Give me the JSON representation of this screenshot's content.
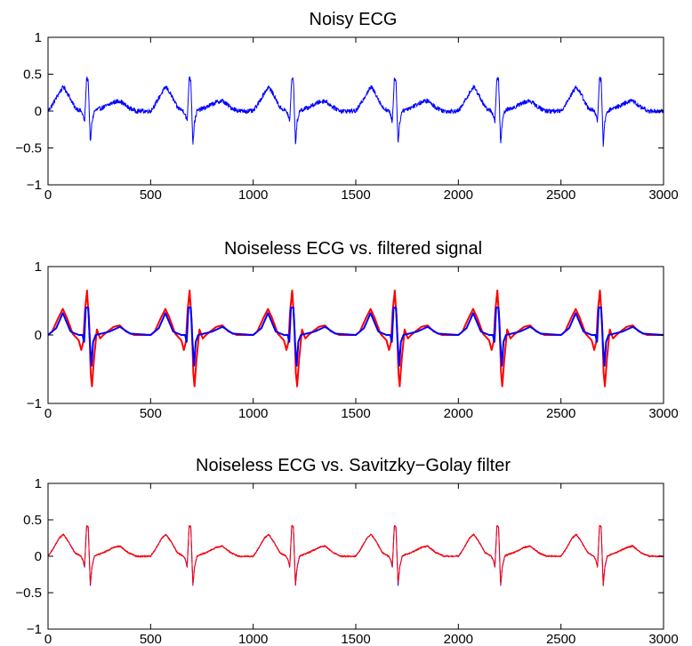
{
  "chart_data": [
    {
      "type": "line",
      "title": "Noisy ECG",
      "xlabel": "",
      "ylabel": "",
      "xlim": [
        0,
        3000
      ],
      "ylim": [
        -1,
        1
      ],
      "xticks": [
        0,
        500,
        1000,
        1500,
        2000,
        2500,
        3000
      ],
      "yticks": [
        -1,
        -0.5,
        0,
        0.5,
        1
      ],
      "xtick_labels": [
        "0",
        "500",
        "1000",
        "1500",
        "2000",
        "2500",
        "3000"
      ],
      "ytick_labels": [
        "−1",
        "−0.5",
        "0",
        "0.5",
        "1"
      ],
      "grid": false,
      "beat_period": 500,
      "beat_starts": [
        0,
        500,
        1000,
        1500,
        2000,
        2500
      ],
      "series": [
        {
          "color": "#0000ff",
          "noise_amplitude": 0.03,
          "beat_shape": {
            "x": [
              0,
              20,
              55,
              75,
              100,
              130,
              160,
              170,
              178,
              188,
              196,
              206,
              214,
              226,
              240,
              270,
              320,
              350,
              390,
              430,
              500
            ],
            "y": [
              0,
              0.08,
              0.25,
              0.33,
              0.22,
              0.05,
              0.0,
              -0.05,
              -0.15,
              0.45,
              0.42,
              -0.45,
              -0.15,
              0.0,
              0.02,
              0.05,
              0.12,
              0.14,
              0.05,
              0.0,
              0.0
            ]
          }
        }
      ]
    },
    {
      "type": "line",
      "title": "Noiseless ECG  vs. filtered signal",
      "xlabel": "",
      "ylabel": "",
      "xlim": [
        0,
        3000
      ],
      "ylim": [
        -1,
        1
      ],
      "xticks": [
        0,
        500,
        1000,
        1500,
        2000,
        2500,
        3000
      ],
      "yticks": [
        -1,
        0,
        1
      ],
      "xtick_labels": [
        "0",
        "500",
        "1000",
        "1500",
        "2000",
        "2500",
        "3000"
      ],
      "ytick_labels": [
        "−1",
        "0",
        "1"
      ],
      "grid": false,
      "beat_period": 500,
      "beat_starts": [
        0,
        500,
        1000,
        1500,
        2000,
        2500
      ],
      "series": [
        {
          "color": "#ff0000",
          "noise_amplitude": 0,
          "beat_shape": {
            "x": [
              0,
              20,
              50,
              72,
              92,
              120,
              150,
              162,
              172,
              180,
              190,
              200,
              208,
              214,
              224,
              238,
              254,
              270,
              290,
              320,
              350,
              380,
              420,
              500
            ],
            "y": [
              0,
              0.05,
              0.25,
              0.38,
              0.25,
              0.02,
              -0.08,
              -0.22,
              -0.1,
              0.35,
              0.65,
              0.2,
              -0.55,
              -0.75,
              -0.35,
              0.08,
              -0.05,
              0.0,
              0.05,
              0.12,
              0.14,
              0.05,
              0.0,
              0.0
            ]
          }
        },
        {
          "color": "#0000ff",
          "noise_amplitude": 0,
          "beat_shape": {
            "x": [
              0,
              40,
              72,
              110,
              150,
              168,
              176,
              184,
              196,
              204,
              212,
              220,
              232,
              300,
              350,
              400,
              500
            ],
            "y": [
              0,
              0.1,
              0.32,
              0.05,
              0.0,
              0.0,
              -0.1,
              0.4,
              0.4,
              -0.1,
              -0.45,
              -0.1,
              0.0,
              0.05,
              0.12,
              0.02,
              0.0
            ]
          }
        }
      ]
    },
    {
      "type": "line",
      "title": "Noiseless ECG  vs. Savitzky−Golay filter",
      "xlabel": "",
      "ylabel": "",
      "xlim": [
        0,
        3000
      ],
      "ylim": [
        -1,
        1
      ],
      "xticks": [
        0,
        500,
        1000,
        1500,
        2000,
        2500,
        3000
      ],
      "yticks": [
        -1,
        -0.5,
        0,
        0.5,
        1
      ],
      "xtick_labels": [
        "0",
        "500",
        "1000",
        "1500",
        "2000",
        "2500",
        "3000"
      ],
      "ytick_labels": [
        "−1",
        "−0.5",
        "0",
        "0.5",
        "1"
      ],
      "grid": false,
      "beat_period": 500,
      "beat_starts": [
        0,
        500,
        1000,
        1500,
        2000,
        2500
      ],
      "series": [
        {
          "color": "#0000ff",
          "noise_amplitude": 0,
          "beat_shape": {
            "x": [
              0,
              20,
              55,
              75,
              100,
              130,
              160,
              170,
              178,
              188,
              196,
              206,
              214,
              226,
              240,
              270,
              320,
              350,
              390,
              430,
              500
            ],
            "y": [
              0,
              0.08,
              0.25,
              0.3,
              0.2,
              0.05,
              0.0,
              -0.05,
              -0.15,
              0.42,
              0.4,
              -0.4,
              -0.15,
              0.0,
              0.02,
              0.05,
              0.12,
              0.14,
              0.05,
              0.0,
              0.0
            ]
          }
        },
        {
          "color": "#ff0000",
          "noise_amplitude": 0.012,
          "beat_shape": {
            "x": [
              0,
              20,
              55,
              75,
              100,
              130,
              160,
              170,
              178,
              188,
              196,
              206,
              214,
              226,
              240,
              270,
              320,
              350,
              390,
              430,
              500
            ],
            "y": [
              0,
              0.08,
              0.25,
              0.3,
              0.2,
              0.05,
              0.0,
              -0.05,
              -0.15,
              0.42,
              0.4,
              -0.4,
              -0.15,
              0.0,
              0.02,
              0.05,
              0.12,
              0.14,
              0.05,
              0.0,
              0.0
            ]
          }
        }
      ]
    }
  ]
}
